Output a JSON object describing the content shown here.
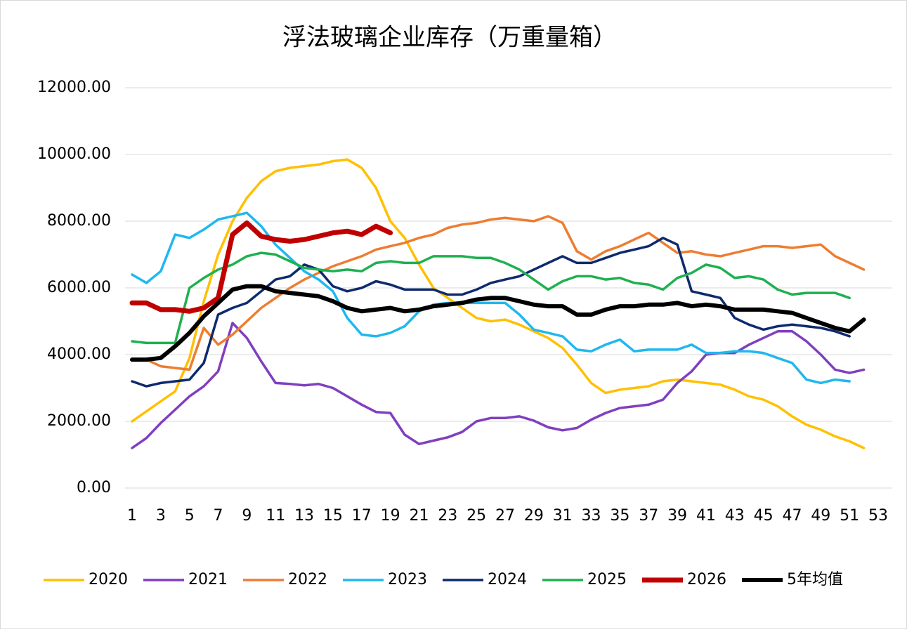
{
  "chart_data": {
    "type": "line",
    "title": "浮法玻璃企业库存（万重量箱）",
    "x": [
      1,
      2,
      3,
      4,
      5,
      6,
      7,
      8,
      9,
      10,
      11,
      12,
      13,
      14,
      15,
      16,
      17,
      18,
      19,
      20,
      21,
      22,
      23,
      24,
      25,
      26,
      27,
      28,
      29,
      30,
      31,
      32,
      33,
      34,
      35,
      36,
      37,
      38,
      39,
      40,
      41,
      42,
      43,
      44,
      45,
      46,
      47,
      48,
      49,
      50,
      51,
      52,
      53
    ],
    "xlim": [
      1,
      53
    ],
    "xticks": [
      1,
      3,
      5,
      7,
      9,
      11,
      13,
      15,
      17,
      19,
      21,
      23,
      25,
      27,
      29,
      31,
      33,
      35,
      37,
      39,
      41,
      43,
      45,
      47,
      49,
      51,
      53
    ],
    "ylim": [
      0,
      12000
    ],
    "yticks": [
      {
        "value": 0,
        "label": "0.00"
      },
      {
        "value": 2000,
        "label": "2000.00"
      },
      {
        "value": 4000,
        "label": "4000.00"
      },
      {
        "value": 6000,
        "label": "6000.00"
      },
      {
        "value": 8000,
        "label": "8000.00"
      },
      {
        "value": 10000,
        "label": "10000.00"
      },
      {
        "value": 12000,
        "label": "12000.00"
      }
    ],
    "grid": true,
    "legend": "bottom",
    "series": [
      {
        "name": "2020",
        "color": "#ffc000",
        "width": 3.5,
        "values": [
          2000,
          2300,
          2600,
          2900,
          3900,
          5600,
          7000,
          8000,
          8700,
          9200,
          9500,
          9600,
          9650,
          9700,
          9800,
          9850,
          9600,
          9000,
          8000,
          7500,
          6700,
          6000,
          5700,
          5400,
          5100,
          5000,
          5050,
          4900,
          4700,
          4500,
          4200,
          3700,
          3150,
          2850,
          2950,
          3000,
          3050,
          3200,
          3250,
          3200,
          3150,
          3100,
          2950,
          2750,
          2650,
          2450,
          2150,
          1900,
          1750,
          1550,
          1400,
          1200,
          null
        ]
      },
      {
        "name": "2021",
        "color": "#7f3fbf",
        "width": 3.5,
        "values": [
          1200,
          1500,
          1950,
          2350,
          2750,
          3050,
          3500,
          4950,
          4500,
          3800,
          3150,
          3120,
          3080,
          3120,
          3000,
          2750,
          2500,
          2280,
          2250,
          1600,
          1320,
          1420,
          1520,
          1680,
          2000,
          2100,
          2100,
          2150,
          2020,
          1820,
          1730,
          1800,
          2050,
          2250,
          2400,
          2450,
          2500,
          2650,
          3150,
          3500,
          4000,
          4050,
          4050,
          4300,
          4500,
          4700,
          4700,
          4400,
          4000,
          3550,
          3450,
          3550,
          null
        ]
      },
      {
        "name": "2022",
        "color": "#ed7d31",
        "width": 3.5,
        "values": [
          3850,
          3850,
          3650,
          3600,
          3550,
          4800,
          4300,
          4600,
          5000,
          5400,
          5700,
          6000,
          6250,
          6450,
          6650,
          6800,
          6950,
          7150,
          7250,
          7350,
          7500,
          7600,
          7800,
          7900,
          7950,
          8050,
          8100,
          8050,
          8000,
          8150,
          7950,
          7100,
          6850,
          7100,
          7250,
          7450,
          7650,
          7350,
          7050,
          7100,
          7000,
          6950,
          7050,
          7150,
          7250,
          7250,
          7200,
          7250,
          7300,
          6950,
          6750,
          6550,
          null
        ]
      },
      {
        "name": "2023",
        "color": "#1fb8ee",
        "width": 3.5,
        "values": [
          6400,
          6150,
          6500,
          7600,
          7500,
          7750,
          8050,
          8150,
          8250,
          7850,
          7300,
          6900,
          6500,
          6250,
          5900,
          5100,
          4600,
          4550,
          4650,
          4850,
          5300,
          5500,
          5550,
          5550,
          5550,
          5550,
          5550,
          5200,
          4750,
          4650,
          4550,
          4150,
          4100,
          4300,
          4450,
          4100,
          4150,
          4150,
          4150,
          4300,
          4050,
          4050,
          4100,
          4100,
          4050,
          3900,
          3750,
          3250,
          3150,
          3250,
          3200,
          null,
          null
        ]
      },
      {
        "name": "2024",
        "color": "#0e2a6e",
        "width": 3.5,
        "values": [
          3200,
          3050,
          3150,
          3200,
          3250,
          3750,
          5200,
          5400,
          5550,
          5900,
          6250,
          6350,
          6700,
          6550,
          6050,
          5900,
          6000,
          6200,
          6100,
          5950,
          5950,
          5950,
          5800,
          5800,
          5950,
          6150,
          6250,
          6350,
          6550,
          6750,
          6950,
          6750,
          6750,
          6900,
          7050,
          7150,
          7250,
          7500,
          7300,
          5900,
          5800,
          5700,
          5100,
          4900,
          4750,
          4850,
          4900,
          4850,
          4800,
          4700,
          4550,
          null,
          null
        ]
      },
      {
        "name": "2025",
        "color": "#1fb050",
        "width": 3.5,
        "values": [
          4400,
          4350,
          4350,
          4350,
          6000,
          6300,
          6550,
          6700,
          6950,
          7050,
          7000,
          6800,
          6600,
          6550,
          6500,
          6550,
          6500,
          6750,
          6800,
          6750,
          6750,
          6950,
          6950,
          6950,
          6900,
          6900,
          6750,
          6550,
          6250,
          5950,
          6200,
          6350,
          6350,
          6250,
          6300,
          6150,
          6100,
          5950,
          6300,
          6450,
          6700,
          6600,
          6300,
          6350,
          6250,
          5950,
          5800,
          5850,
          5850,
          5850,
          5700,
          null,
          null
        ]
      },
      {
        "name": "2026",
        "color": "#c00000",
        "width": 7,
        "values": [
          5550,
          5550,
          5350,
          5350,
          5300,
          5400,
          5700,
          7600,
          7950,
          7550,
          7450,
          7400,
          7450,
          7550,
          7650,
          7700,
          7600,
          7850,
          7650,
          null,
          null,
          null,
          null,
          null,
          null,
          null,
          null,
          null,
          null,
          null,
          null,
          null,
          null,
          null,
          null,
          null,
          null,
          null,
          null,
          null,
          null,
          null,
          null,
          null,
          null,
          null,
          null,
          null,
          null,
          null,
          null,
          null,
          null
        ]
      },
      {
        "name": "5年均值",
        "color": "#000000",
        "width": 6,
        "values": [
          3850,
          3850,
          3900,
          4250,
          4650,
          5150,
          5550,
          5950,
          6050,
          6050,
          5900,
          5850,
          5800,
          5750,
          5600,
          5400,
          5300,
          5350,
          5400,
          5300,
          5350,
          5450,
          5500,
          5550,
          5650,
          5700,
          5700,
          5600,
          5500,
          5450,
          5450,
          5200,
          5200,
          5350,
          5450,
          5450,
          5500,
          5500,
          5550,
          5450,
          5500,
          5450,
          5350,
          5350,
          5350,
          5300,
          5250,
          5100,
          4950,
          4800,
          4700,
          5050,
          null
        ]
      }
    ]
  }
}
